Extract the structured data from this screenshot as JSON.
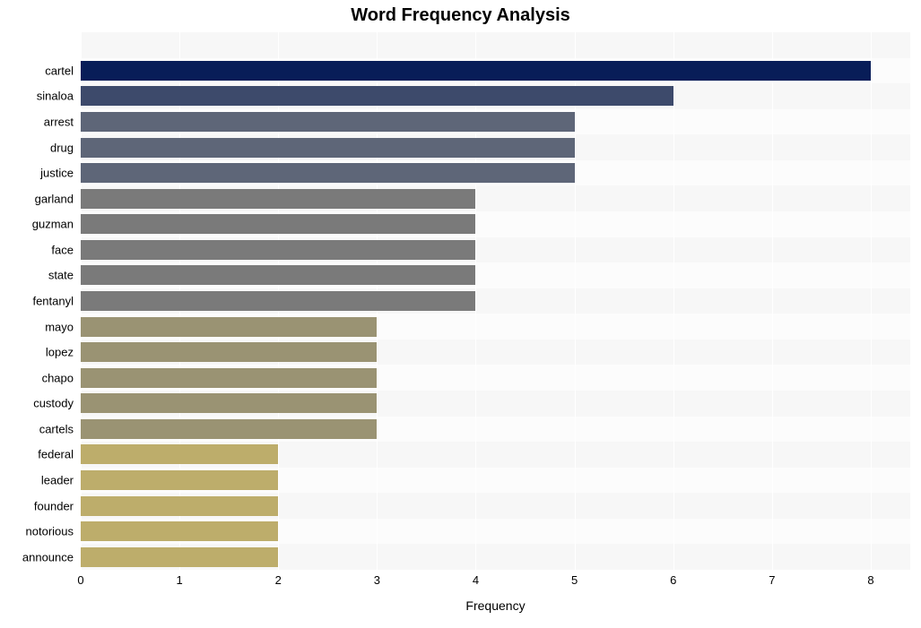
{
  "chart": {
    "type": "bar-horizontal",
    "title": "Word Frequency Analysis",
    "title_fontsize": 20,
    "title_fontweight": "bold",
    "xlabel": "Frequency",
    "xlabel_fontsize": 14,
    "ylabel_fontsize": 13,
    "xlim": [
      0,
      8.4
    ],
    "xtick_step": 1,
    "xticks": [
      0,
      1,
      2,
      3,
      4,
      5,
      6,
      7,
      8
    ],
    "background_color": "#ffffff",
    "plot_bg_color": "#f7f7f7",
    "plot_bg_color_alt": "#fcfcfc",
    "grid_color": "#ffffff",
    "bar_height_ratio": 0.77,
    "slots": 21,
    "first_bar_slot": 1,
    "data": [
      {
        "label": "cartel",
        "value": 8,
        "color": "#081d58"
      },
      {
        "label": "sinaloa",
        "value": 6,
        "color": "#3d4a6b"
      },
      {
        "label": "arrest",
        "value": 5,
        "color": "#5e6678"
      },
      {
        "label": "drug",
        "value": 5,
        "color": "#5e6678"
      },
      {
        "label": "justice",
        "value": 5,
        "color": "#5e6678"
      },
      {
        "label": "garland",
        "value": 4,
        "color": "#7a7a7a"
      },
      {
        "label": "guzman",
        "value": 4,
        "color": "#7a7a7a"
      },
      {
        "label": "face",
        "value": 4,
        "color": "#7a7a7a"
      },
      {
        "label": "state",
        "value": 4,
        "color": "#7a7a7a"
      },
      {
        "label": "fentanyl",
        "value": 4,
        "color": "#7a7a7a"
      },
      {
        "label": "mayo",
        "value": 3,
        "color": "#9a9373"
      },
      {
        "label": "lopez",
        "value": 3,
        "color": "#9a9373"
      },
      {
        "label": "chapo",
        "value": 3,
        "color": "#9a9373"
      },
      {
        "label": "custody",
        "value": 3,
        "color": "#9a9373"
      },
      {
        "label": "cartels",
        "value": 3,
        "color": "#9a9373"
      },
      {
        "label": "federal",
        "value": 2,
        "color": "#bdad6b"
      },
      {
        "label": "leader",
        "value": 2,
        "color": "#bdad6b"
      },
      {
        "label": "founder",
        "value": 2,
        "color": "#bdad6b"
      },
      {
        "label": "notorious",
        "value": 2,
        "color": "#bdad6b"
      },
      {
        "label": "announce",
        "value": 2,
        "color": "#bdad6b"
      }
    ]
  }
}
